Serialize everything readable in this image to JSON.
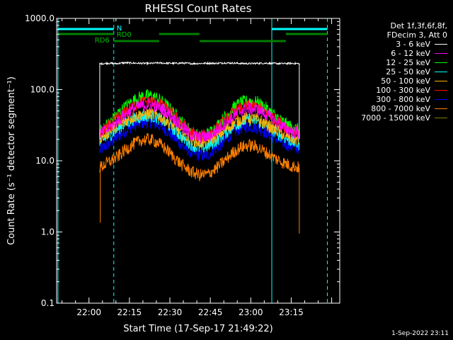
{
  "chart_data": {
    "type": "line",
    "title": "RHESSI Count Rates",
    "xlabel": "Start Time (17-Sep-17 21:49:22)",
    "ylabel": "Count Rate (s⁻¹ detector segment⁻¹)",
    "yscale": "log",
    "ylim": [
      0.1,
      1000
    ],
    "xlim_minutes": [
      -12,
      93
    ],
    "yticks": [
      "1000.0",
      "100.0",
      "10.0",
      "1.0",
      "0.1"
    ],
    "xticks": [
      {
        "label": "22:00",
        "minute": 0
      },
      {
        "label": "22:15",
        "minute": 15
      },
      {
        "label": "22:30",
        "minute": 30
      },
      {
        "label": "22:45",
        "minute": 45
      },
      {
        "label": "23:00",
        "minute": 60
      },
      {
        "label": "23:15",
        "minute": 75
      }
    ],
    "data_start_minute": 4,
    "data_end_minute": 78,
    "series": [
      {
        "name": "3 - 6 keV",
        "color": "#ffffff",
        "values": [
          230,
          235,
          232,
          238,
          236,
          234,
          233,
          237,
          235,
          234,
          236,
          232,
          233,
          235,
          234,
          237,
          236,
          233,
          232,
          234,
          235,
          233,
          232,
          234,
          232
        ]
      },
      {
        "name": "6 - 12 keV",
        "color": "#ff00ff",
        "values": [
          23,
          28,
          35,
          44,
          53,
          60,
          62,
          58,
          49,
          38,
          29,
          23,
          21,
          22,
          26,
          33,
          42,
          50,
          54,
          52,
          45,
          37,
          30,
          26,
          24
        ]
      },
      {
        "name": "12 - 25 keV",
        "color": "#00ff00",
        "values": [
          26,
          33,
          44,
          57,
          70,
          80,
          83,
          75,
          61,
          46,
          34,
          26,
          22,
          24,
          30,
          41,
          55,
          66,
          70,
          66,
          55,
          44,
          35,
          30,
          27
        ]
      },
      {
        "name": "25 - 50 keV",
        "color": "#00ffff",
        "values": [
          18,
          22,
          27,
          33,
          38,
          42,
          43,
          40,
          34,
          27,
          21,
          17,
          15,
          16,
          19,
          24,
          30,
          35,
          38,
          36,
          31,
          26,
          22,
          19,
          17
        ]
      },
      {
        "name": "50 - 100 keV",
        "color": "#ffb000",
        "values": [
          21,
          25,
          30,
          36,
          41,
          45,
          46,
          43,
          37,
          30,
          24,
          20,
          18,
          19,
          22,
          27,
          33,
          38,
          40,
          38,
          33,
          28,
          24,
          21,
          19
        ]
      },
      {
        "name": "100 - 300 keV",
        "color": "#ff0000",
        "values": [
          24,
          30,
          38,
          48,
          58,
          66,
          69,
          64,
          54,
          42,
          32,
          25,
          22,
          23,
          28,
          36,
          46,
          55,
          59,
          56,
          48,
          39,
          32,
          27,
          25
        ]
      },
      {
        "name": "300 - 800 keV",
        "color": "#0000ff",
        "values": [
          14,
          17,
          21,
          26,
          31,
          34,
          35,
          32,
          27,
          21,
          16,
          13,
          12,
          12,
          15,
          19,
          25,
          29,
          31,
          29,
          25,
          21,
          18,
          16,
          15
        ]
      },
      {
        "name": "800 - 7000 keV",
        "color": "#ff7f00",
        "values": [
          8,
          9.5,
          11,
          14,
          17,
          19.5,
          20,
          18,
          14.5,
          11,
          8.5,
          7,
          6.3,
          6.5,
          7.8,
          10,
          13,
          15.5,
          16.5,
          15.5,
          13,
          11,
          9.5,
          8.5,
          8
        ]
      },
      {
        "name": "7000 - 15000 keV",
        "color": "#7f7f00",
        "values": []
      }
    ],
    "spikes": [
      {
        "series": "800 - 7000 keV",
        "minute": 4.2,
        "value": 1.35
      },
      {
        "series": "800 - 7000 keV",
        "minute": 78,
        "value": 0.95
      }
    ],
    "vlines": [
      {
        "minute": -11.5,
        "style": "solid",
        "color": "#00ffff"
      },
      {
        "minute": 9.2,
        "style": "dashed",
        "color": "#00ffff"
      },
      {
        "minute": 67.8,
        "style": "solid",
        "color": "#00ffff"
      },
      {
        "minute": 88.4,
        "style": "dashed",
        "color": "#00ffff"
      }
    ],
    "state_bars": [
      {
        "label": "N",
        "color": "#00ffff",
        "level": 0,
        "segments": [
          [
            -11.5,
            9.2
          ],
          [
            67.8,
            88.4
          ]
        ]
      },
      {
        "label": "RD0",
        "color": "#007f00",
        "level": 1,
        "segments": [
          [
            -11.5,
            9.2
          ],
          [
            26,
            41
          ],
          [
            73,
            88.4
          ]
        ]
      },
      {
        "label": "RD6",
        "color": "#007f00",
        "level": 2,
        "segments": [
          [
            9.2,
            26
          ],
          [
            41,
            73
          ]
        ]
      }
    ],
    "legend": {
      "placement": "right",
      "header": [
        "Det 1f,3f,6f,8f,",
        "FDecim 3, Att 0"
      ]
    }
  },
  "footer": {
    "timestamp": "1-Sep-2022 23:11"
  }
}
